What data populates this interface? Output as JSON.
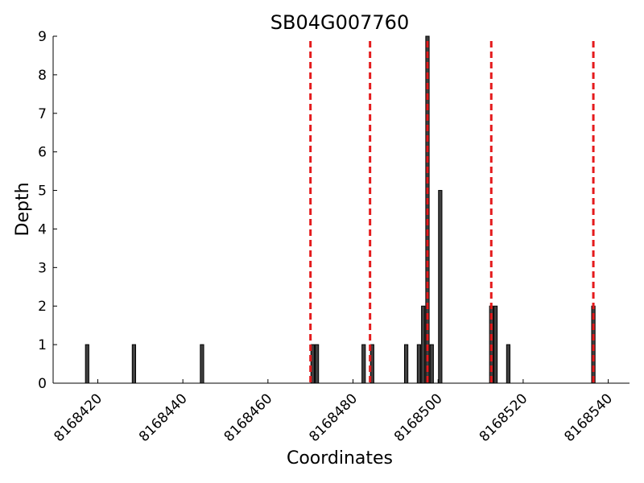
{
  "chart_data": {
    "type": "bar",
    "title": "SB04G007760",
    "xlabel": "Coordinates",
    "ylabel": "Depth",
    "xlim": [
      8168409.5,
      8168545
    ],
    "ylim": [
      0,
      9
    ],
    "x_ticks": [
      8168420,
      8168440,
      8168460,
      8168480,
      8168500,
      8168520,
      8168540
    ],
    "x_tick_labels": [
      "8168420",
      "8168440",
      "8168460",
      "8168480",
      "8168500",
      "8168520",
      "8168540"
    ],
    "y_ticks": [
      0,
      1,
      2,
      3,
      4,
      5,
      6,
      7,
      8,
      9
    ],
    "y_tick_labels": [
      "0",
      "1",
      "2",
      "3",
      "4",
      "5",
      "6",
      "7",
      "8",
      "9"
    ],
    "bar_color": "#404040",
    "bar_edge_color": "#000000",
    "bars": [
      {
        "x": 8168417,
        "value": 1
      },
      {
        "x": 8168428,
        "value": 1
      },
      {
        "x": 8168444,
        "value": 1
      },
      {
        "x": 8168470,
        "value": 1
      },
      {
        "x": 8168471,
        "value": 1
      },
      {
        "x": 8168482,
        "value": 1
      },
      {
        "x": 8168484,
        "value": 1
      },
      {
        "x": 8168492,
        "value": 1
      },
      {
        "x": 8168495,
        "value": 1
      },
      {
        "x": 8168496,
        "value": 2
      },
      {
        "x": 8168497,
        "value": 9
      },
      {
        "x": 8168498,
        "value": 1
      },
      {
        "x": 8168500,
        "value": 5
      },
      {
        "x": 8168512,
        "value": 2
      },
      {
        "x": 8168513,
        "value": 2
      },
      {
        "x": 8168516,
        "value": 1
      },
      {
        "x": 8168536,
        "value": 2
      }
    ],
    "reference_lines": {
      "color": "#e41a1c",
      "style": "dashed",
      "x": [
        8168470,
        8168484,
        8168497.5,
        8168512.5,
        8168536.5
      ]
    },
    "grid": false,
    "legend": "none"
  }
}
